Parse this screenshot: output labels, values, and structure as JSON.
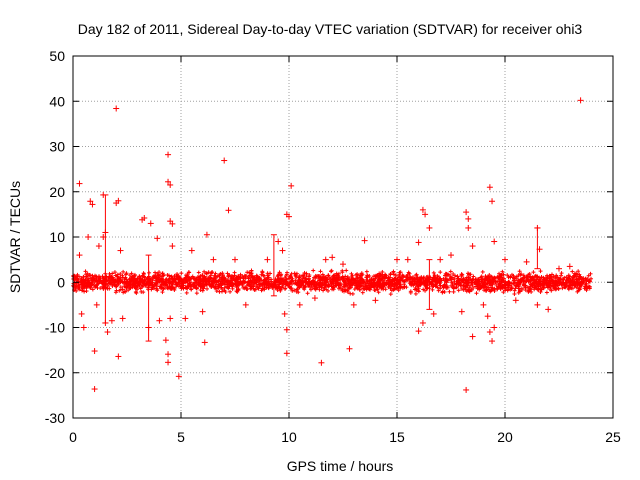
{
  "chart_data": {
    "type": "scatter",
    "title": "Day 182 of 2011, Sidereal Day-to-day VTEC variation (SDTVAR) for receiver ohi3",
    "xlabel": "GPS time / hours",
    "ylabel": "SDTVAR / TECUs",
    "xlim": [
      0,
      25
    ],
    "ylim": [
      -30,
      50
    ],
    "x_ticks": [
      0,
      5,
      10,
      15,
      20,
      25
    ],
    "y_ticks": [
      -30,
      -20,
      -10,
      0,
      10,
      20,
      30,
      40,
      50
    ],
    "grid": true,
    "marker": "+",
    "color": "#ff0000",
    "dense_band": {
      "x_range": [
        0,
        24
      ],
      "typical_range": [
        -3,
        3
      ],
      "note": "dense continuous band of points around 0 TECU across the day"
    },
    "series": [
      {
        "name": "SDTVAR",
        "points": [
          [
            0.3,
            21.8
          ],
          [
            0.3,
            6.0
          ],
          [
            0.4,
            -7.0
          ],
          [
            0.5,
            -10.0
          ],
          [
            0.7,
            10.0
          ],
          [
            0.8,
            17.9
          ],
          [
            0.9,
            17.2
          ],
          [
            1.0,
            -23.6
          ],
          [
            1.0,
            -15.2
          ],
          [
            1.1,
            -5.0
          ],
          [
            1.2,
            8.0
          ],
          [
            1.4,
            10.0
          ],
          [
            1.4,
            19.3
          ],
          [
            1.5,
            11.0
          ],
          [
            1.5,
            -9.0
          ],
          [
            1.6,
            -11.0
          ],
          [
            1.8,
            -8.5
          ],
          [
            2.0,
            17.5
          ],
          [
            2.1,
            18.0
          ],
          [
            2.0,
            38.4
          ],
          [
            2.1,
            -16.4
          ],
          [
            2.2,
            7.0
          ],
          [
            2.3,
            -8.0
          ],
          [
            3.2,
            13.8
          ],
          [
            3.3,
            14.2
          ],
          [
            3.5,
            -10.0
          ],
          [
            3.6,
            13.0
          ],
          [
            3.9,
            9.7
          ],
          [
            4.0,
            -8.5
          ],
          [
            4.3,
            -12.8
          ],
          [
            4.4,
            28.2
          ],
          [
            4.4,
            22.2
          ],
          [
            4.5,
            21.5
          ],
          [
            4.5,
            13.5
          ],
          [
            4.6,
            12.9
          ],
          [
            4.4,
            -15.9
          ],
          [
            4.4,
            -17.7
          ],
          [
            4.5,
            -8.0
          ],
          [
            4.6,
            8.0
          ],
          [
            4.9,
            -20.8
          ],
          [
            5.2,
            -8.0
          ],
          [
            5.5,
            7.0
          ],
          [
            6.0,
            -6.5
          ],
          [
            6.1,
            -13.3
          ],
          [
            6.2,
            10.5
          ],
          [
            6.5,
            5.0
          ],
          [
            7.0,
            26.9
          ],
          [
            7.2,
            15.9
          ],
          [
            7.5,
            5.0
          ],
          [
            8.0,
            -5.0
          ],
          [
            9.0,
            5.0
          ],
          [
            9.5,
            9.0
          ],
          [
            9.7,
            7.0
          ],
          [
            9.8,
            -7.0
          ],
          [
            9.9,
            15.0
          ],
          [
            10.0,
            14.5
          ],
          [
            9.9,
            -10.5
          ],
          [
            9.9,
            -15.7
          ],
          [
            10.1,
            21.3
          ],
          [
            10.5,
            -5.0
          ],
          [
            11.2,
            -3.5
          ],
          [
            11.5,
            -17.8
          ],
          [
            11.7,
            5.0
          ],
          [
            12.0,
            5.5
          ],
          [
            12.5,
            4.0
          ],
          [
            12.8,
            -14.7
          ],
          [
            13.0,
            -5.0
          ],
          [
            13.5,
            9.2
          ],
          [
            14.0,
            -4.0
          ],
          [
            15.0,
            5.0
          ],
          [
            15.5,
            5.0
          ],
          [
            16.0,
            8.8
          ],
          [
            16.2,
            16.0
          ],
          [
            16.3,
            15.0
          ],
          [
            16.5,
            12.0
          ],
          [
            16.0,
            -10.8
          ],
          [
            16.2,
            -9.0
          ],
          [
            16.7,
            -7.0
          ],
          [
            17.0,
            5.0
          ],
          [
            17.5,
            6.0
          ],
          [
            18.0,
            -6.5
          ],
          [
            18.2,
            15.5
          ],
          [
            18.3,
            14.0
          ],
          [
            18.3,
            12.0
          ],
          [
            18.5,
            8.0
          ],
          [
            18.2,
            -23.8
          ],
          [
            18.5,
            -12.0
          ],
          [
            19.0,
            -5.0
          ],
          [
            19.2,
            -7.5
          ],
          [
            19.3,
            21.0
          ],
          [
            19.4,
            17.9
          ],
          [
            19.5,
            9.0
          ],
          [
            19.3,
            -11.0
          ],
          [
            19.4,
            -13.0
          ],
          [
            19.5,
            -10.0
          ],
          [
            20.0,
            5.0
          ],
          [
            20.5,
            -4.0
          ],
          [
            21.0,
            4.5
          ],
          [
            21.5,
            12.0
          ],
          [
            21.6,
            7.3
          ],
          [
            21.5,
            -5.0
          ],
          [
            22.0,
            -6.0
          ],
          [
            22.5,
            3.0
          ],
          [
            23.0,
            3.5
          ],
          [
            23.5,
            40.2
          ]
        ],
        "error_bars": [
          {
            "x": 1.5,
            "low": -9.0,
            "high": 19.3
          },
          {
            "x": 3.5,
            "low": -13.0,
            "high": 6.0
          },
          {
            "x": 9.3,
            "low": -3.0,
            "high": 10.5
          },
          {
            "x": 16.5,
            "low": -6.0,
            "high": 5.0
          },
          {
            "x": 21.5,
            "low": 3.0,
            "high": 12.0
          }
        ]
      }
    ]
  }
}
